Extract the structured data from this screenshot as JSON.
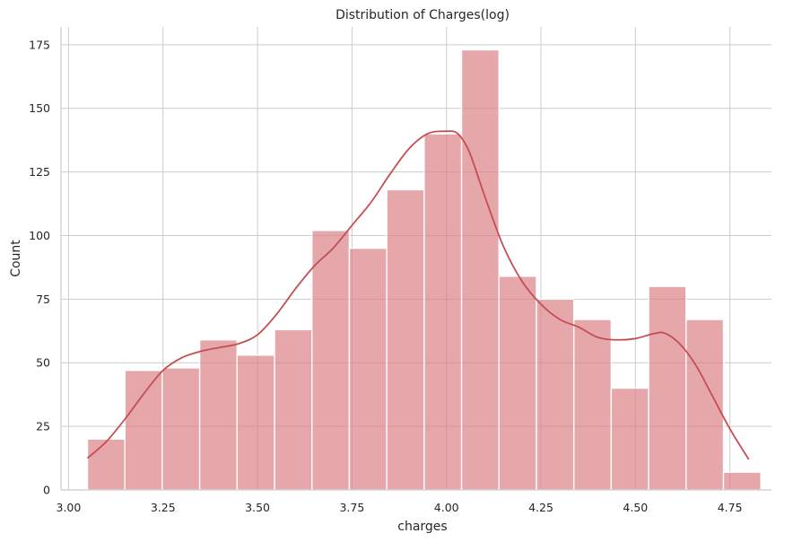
{
  "chart_data": {
    "type": "bar",
    "title": "Distribution of Charges(log)",
    "xlabel": "charges",
    "ylabel": "Count",
    "xlim": [
      2.98,
      4.86
    ],
    "ylim": [
      0,
      182
    ],
    "x_ticks": [
      3.0,
      3.25,
      3.5,
      3.75,
      4.0,
      4.25,
      4.5,
      4.75
    ],
    "x_tick_labels": [
      "3.00",
      "3.25",
      "3.50",
      "3.75",
      "4.00",
      "4.25",
      "4.50",
      "4.75"
    ],
    "y_ticks": [
      0,
      25,
      50,
      75,
      100,
      125,
      150,
      175
    ],
    "y_tick_labels": [
      "0",
      "25",
      "50",
      "75",
      "100",
      "125",
      "150",
      "175"
    ],
    "grid": true,
    "bar_color": "#d87d82",
    "kde_color": "#c44e52",
    "bins": [
      {
        "start": 3.05,
        "end": 3.149,
        "count": 20
      },
      {
        "start": 3.149,
        "end": 3.248,
        "count": 47
      },
      {
        "start": 3.248,
        "end": 3.347,
        "count": 48
      },
      {
        "start": 3.347,
        "end": 3.446,
        "count": 59
      },
      {
        "start": 3.446,
        "end": 3.545,
        "count": 53
      },
      {
        "start": 3.545,
        "end": 3.644,
        "count": 63
      },
      {
        "start": 3.644,
        "end": 3.743,
        "count": 102
      },
      {
        "start": 3.743,
        "end": 3.842,
        "count": 95
      },
      {
        "start": 3.842,
        "end": 3.941,
        "count": 118
      },
      {
        "start": 3.941,
        "end": 4.04,
        "count": 140
      },
      {
        "start": 4.04,
        "end": 4.139,
        "count": 173
      },
      {
        "start": 4.139,
        "end": 4.238,
        "count": 84
      },
      {
        "start": 4.238,
        "end": 4.337,
        "count": 75
      },
      {
        "start": 4.337,
        "end": 4.436,
        "count": 67
      },
      {
        "start": 4.436,
        "end": 4.535,
        "count": 40
      },
      {
        "start": 4.535,
        "end": 4.634,
        "count": 80
      },
      {
        "start": 4.634,
        "end": 4.733,
        "count": 67
      },
      {
        "start": 4.733,
        "end": 4.832,
        "count": 7
      }
    ],
    "kde": {
      "x": [
        3.05,
        3.1,
        3.15,
        3.2,
        3.25,
        3.3,
        3.35,
        3.4,
        3.45,
        3.5,
        3.55,
        3.6,
        3.65,
        3.7,
        3.75,
        3.8,
        3.85,
        3.9,
        3.95,
        4.0,
        4.03,
        4.06,
        4.1,
        4.15,
        4.2,
        4.25,
        4.3,
        4.35,
        4.4,
        4.45,
        4.5,
        4.55,
        4.58,
        4.62,
        4.66,
        4.7,
        4.75,
        4.8
      ],
      "y": [
        12.5,
        19,
        28,
        38,
        47,
        52,
        54.5,
        56,
        57.5,
        61,
        69,
        79,
        88,
        95,
        104,
        113,
        124,
        134,
        140,
        141,
        140,
        133,
        116,
        96,
        82,
        73,
        67,
        64,
        60,
        59,
        59.5,
        61.5,
        61.5,
        57,
        49,
        38,
        24,
        12
      ]
    }
  }
}
